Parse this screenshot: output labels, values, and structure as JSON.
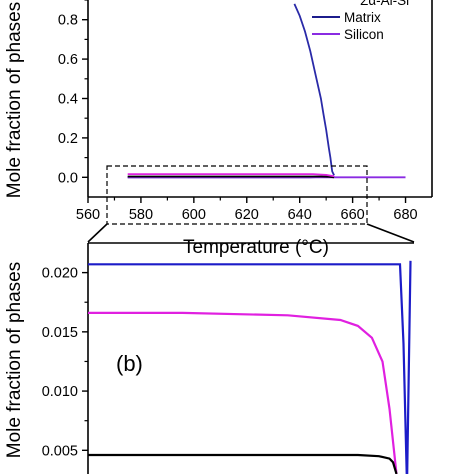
{
  "chart_data": [
    {
      "type": "line",
      "panel": "top",
      "xlabel": "Temperature (°C)",
      "ylabel": "Mole fraction of phases",
      "xlim": [
        560,
        690
      ],
      "ylim": [
        -0.1,
        0.9
      ],
      "xticks": [
        "560",
        "580",
        "600",
        "620",
        "640",
        "660",
        "680"
      ],
      "yticks": [
        "0.0",
        "0.2",
        "0.4",
        "0.6",
        "0.8"
      ],
      "legend_position": "top-right",
      "legend": [
        "Matrix",
        "Silicon"
      ],
      "series": [
        {
          "name": "Matrix",
          "color": "#1c1c8c",
          "x": [
            575,
            640,
            642,
            644,
            646,
            648,
            649,
            650,
            651,
            652,
            653
          ],
          "y": [
            0.0,
            0.0,
            0.0,
            0.0,
            0.001,
            0.001,
            0.002,
            0.003,
            0.004,
            0.005,
            0.0
          ]
        },
        {
          "name": "Silicon",
          "color": "#8a2be2",
          "x": [
            575,
            640,
            648,
            652,
            653,
            680
          ],
          "y": [
            0.0,
            0.0,
            0.0,
            0.0,
            0.0,
            0.0
          ]
        },
        {
          "name": "",
          "color": "#2a2aa8",
          "x": [
            638,
            640,
            642,
            644,
            646,
            648,
            649,
            650,
            651,
            651.6,
            652,
            652.3,
            653
          ],
          "y": [
            0.88,
            0.82,
            0.74,
            0.64,
            0.52,
            0.4,
            0.32,
            0.24,
            0.15,
            0.1,
            0.06,
            0.03,
            0.01
          ]
        },
        {
          "name": "",
          "color": "#000000",
          "x": [
            575,
            648,
            651,
            653
          ],
          "y": [
            0.004,
            0.004,
            0.003,
            0.0
          ]
        },
        {
          "name": "",
          "color": "#e020e0",
          "x": [
            575,
            645,
            650,
            653
          ],
          "y": [
            0.016,
            0.016,
            0.012,
            0.005
          ]
        }
      ]
    },
    {
      "type": "line",
      "panel": "bottom",
      "annotation": "(b)",
      "ylabel": "Mole fraction of phases",
      "xlim": [
        573,
        666
      ],
      "ylim": [
        0.003,
        0.0225
      ],
      "yticks": [
        "0.005",
        "0.010",
        "0.015",
        "0.020"
      ],
      "series": [
        {
          "name": "",
          "color": "#1c1cc8",
          "x": [
            573,
            585,
            600,
            620,
            640,
            658,
            662,
            663,
            664,
            665
          ],
          "y": [
            0.0207,
            0.0207,
            0.0207,
            0.0207,
            0.0207,
            0.0207,
            0.0207,
            0.014,
            0.002,
            0.021
          ]
        },
        {
          "name": "",
          "color": "#e020e0",
          "x": [
            573,
            600,
            630,
            645,
            650,
            654,
            657,
            659,
            661
          ],
          "y": [
            0.0166,
            0.0166,
            0.0164,
            0.016,
            0.0155,
            0.0145,
            0.0125,
            0.0085,
            0.003
          ]
        },
        {
          "name": "",
          "color": "#000000",
          "x": [
            573,
            600,
            630,
            650,
            656,
            659,
            660,
            661
          ],
          "y": [
            0.0046,
            0.0046,
            0.0046,
            0.0046,
            0.0045,
            0.0043,
            0.004,
            0.003
          ]
        }
      ]
    }
  ],
  "visible_text": {
    "legend_cut_top": "Σα-Al-Si"
  }
}
